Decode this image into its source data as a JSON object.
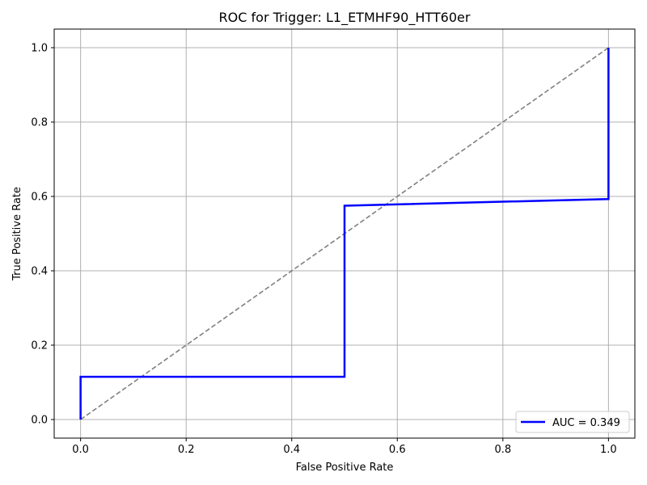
{
  "chart_data": {
    "type": "line",
    "title": "ROC for Trigger: L1_ETMHF90_HTT60er",
    "xlabel": "False Positive Rate",
    "ylabel": "True Positive Rate",
    "xlim": [
      -0.05,
      1.05
    ],
    "ylim": [
      -0.05,
      1.05
    ],
    "xticks": [
      "0.0",
      "0.2",
      "0.4",
      "0.6",
      "0.8",
      "1.0"
    ],
    "yticks": [
      "0.0",
      "0.2",
      "0.4",
      "0.6",
      "0.8",
      "1.0"
    ],
    "grid": true,
    "legend_position": "lower-right",
    "series": [
      {
        "name": "AUC = 0.349",
        "color": "#0000ff",
        "style": "solid",
        "x": [
          0.0,
          0.0,
          0.5,
          0.5,
          1.0,
          1.0
        ],
        "y": [
          0.0,
          0.115,
          0.115,
          0.575,
          0.593,
          1.0
        ]
      }
    ],
    "reference_line": {
      "color": "#808080",
      "style": "dashed",
      "x": [
        0.0,
        1.0
      ],
      "y": [
        0.0,
        1.0
      ]
    }
  }
}
